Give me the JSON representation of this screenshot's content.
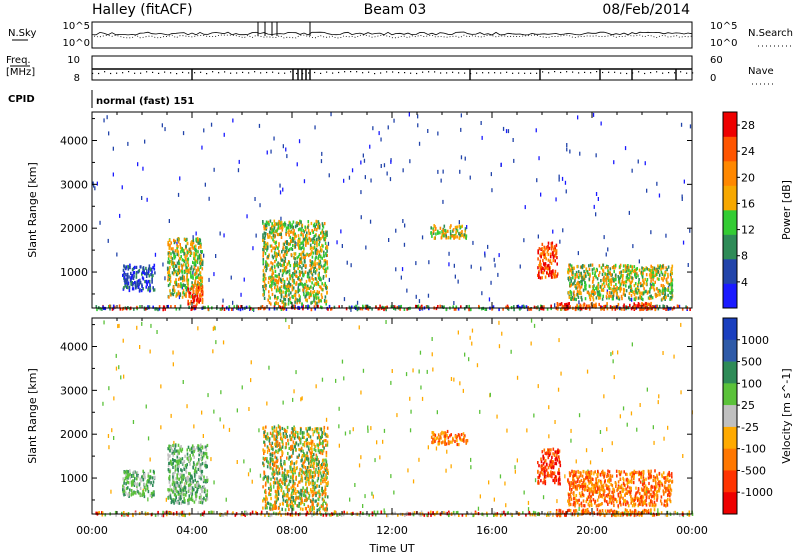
{
  "header": {
    "station": "Halley (fitACF)",
    "beam": "Beam 03",
    "date": "08/Feb/2014"
  },
  "aux_panels": {
    "nsky": {
      "label": "N.Sky",
      "y_ticks": [
        "10^5",
        "10^0"
      ]
    },
    "nsearch": {
      "label": "N.Search",
      "y_ticks": [
        "10^5",
        "10^0"
      ]
    },
    "freq": {
      "label": "Freq.",
      "unit": "[MHz]",
      "y_ticks": [
        "10",
        "8"
      ]
    },
    "nave": {
      "label": "Nave",
      "y_ticks": [
        "60",
        "0"
      ]
    },
    "cpid": {
      "label": "CPID",
      "value": "normal (fast) 151"
    }
  },
  "chart_data": [
    {
      "type": "heatmap",
      "quantity": "Power",
      "x": {
        "label": "Time UT",
        "ticks": [
          "00:00",
          "04:00",
          "08:00",
          "12:00",
          "16:00",
          "20:00",
          "00:00"
        ],
        "range_hours": [
          0,
          24
        ]
      },
      "y": {
        "label": "Slant Range [km]",
        "ticks": [
          1000,
          2000,
          3000,
          4000
        ],
        "range_km": [
          180,
          4650
        ]
      },
      "colorbar": {
        "label": "Power [dB]",
        "ticks": [
          "4",
          "8",
          "12",
          "16",
          "20",
          "24",
          "28"
        ],
        "range": [
          0,
          30
        ],
        "colors": [
          "#1a1aff",
          "#2244aa",
          "#2e8b57",
          "#33cc33",
          "#f7a800",
          "#ff8800",
          "#ff5500",
          "#ee0000"
        ]
      },
      "features": [
        {
          "hours": [
            0,
            24
          ],
          "range_km": [
            180,
            260
          ],
          "level": "mixed"
        },
        {
          "hours": [
            1.2,
            2.5
          ],
          "range_km": [
            600,
            1200
          ],
          "level": "low"
        },
        {
          "hours": [
            3.0,
            4.4
          ],
          "range_km": [
            450,
            1800
          ],
          "level": "medium"
        },
        {
          "hours": [
            3.8,
            4.4
          ],
          "range_km": [
            300,
            700
          ],
          "level": "high"
        },
        {
          "hours": [
            6.8,
            9.4
          ],
          "range_km": [
            300,
            2200
          ],
          "level": "medium"
        },
        {
          "hours": [
            13.5,
            15.0
          ],
          "range_km": [
            1800,
            2100
          ],
          "level": "medium"
        },
        {
          "hours": [
            17.8,
            18.6
          ],
          "range_km": [
            900,
            1700
          ],
          "level": "high"
        },
        {
          "hours": [
            19.0,
            23.2
          ],
          "range_km": [
            400,
            1200
          ],
          "level": "medium"
        },
        {
          "hours": [
            18.5,
            22.5
          ],
          "range_km": [
            180,
            320
          ],
          "level": "high"
        }
      ]
    },
    {
      "type": "heatmap",
      "quantity": "Velocity",
      "x": {
        "label": "Time UT",
        "ticks": [
          "00:00",
          "04:00",
          "08:00",
          "12:00",
          "16:00",
          "20:00",
          "00:00"
        ],
        "range_hours": [
          0,
          24
        ]
      },
      "y": {
        "label": "Slant Range [km]",
        "ticks": [
          1000,
          2000,
          3000,
          4000
        ],
        "range_km": [
          180,
          4650
        ]
      },
      "colorbar": {
        "label": "Velocity [m s^-1]",
        "ticks": [
          "1000",
          "500",
          "100",
          "25",
          "-25",
          "-100",
          "-500",
          "-1000"
        ],
        "colors": [
          "#1a3fbf",
          "#2e5aa8",
          "#2e8b57",
          "#5bc23a",
          "#c0c0c0",
          "#ffaa00",
          "#ff7700",
          "#ff3300",
          "#ee0000"
        ]
      },
      "features": [
        {
          "hours": [
            0,
            24
          ],
          "range_km": [
            180,
            260
          ],
          "level": "mixed"
        },
        {
          "hours": [
            1.2,
            2.5
          ],
          "range_km": [
            600,
            1200
          ],
          "level": "green"
        },
        {
          "hours": [
            3.0,
            4.6
          ],
          "range_km": [
            450,
            1800
          ],
          "level": "green"
        },
        {
          "hours": [
            6.8,
            9.4
          ],
          "range_km": [
            300,
            2200
          ],
          "level": "green-orange"
        },
        {
          "hours": [
            13.5,
            15.0
          ],
          "range_km": [
            1800,
            2100
          ],
          "level": "orange"
        },
        {
          "hours": [
            17.8,
            18.7
          ],
          "range_km": [
            900,
            1700
          ],
          "level": "red"
        },
        {
          "hours": [
            19.0,
            23.2
          ],
          "range_km": [
            400,
            1200
          ],
          "level": "orange"
        },
        {
          "hours": [
            18.5,
            22.5
          ],
          "range_km": [
            180,
            320
          ],
          "level": "orange"
        }
      ]
    }
  ]
}
